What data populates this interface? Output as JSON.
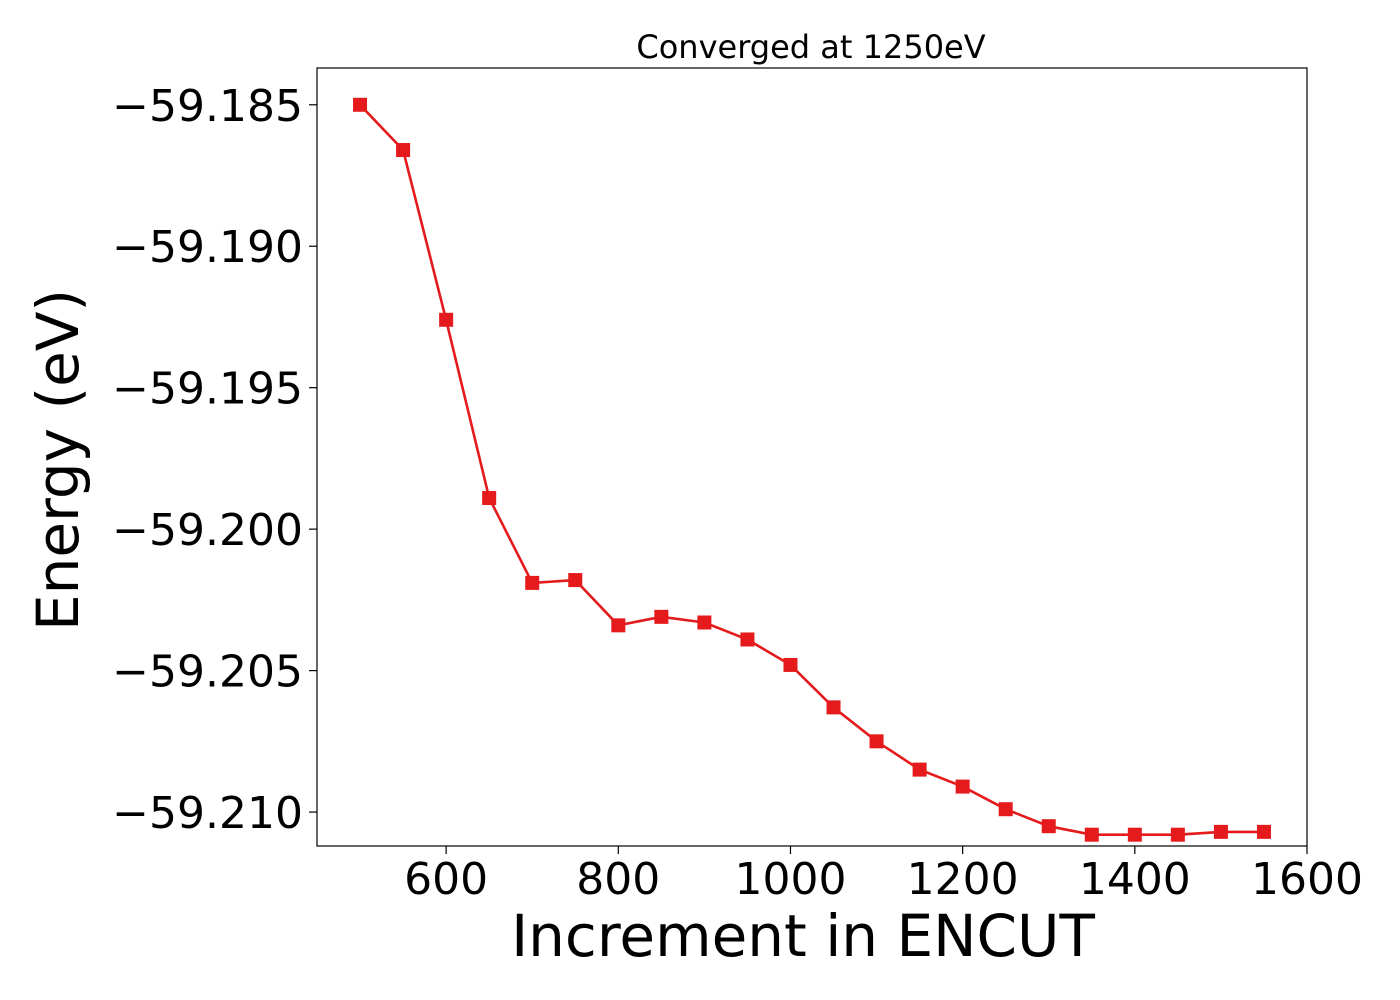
{
  "chart_data": {
    "type": "line",
    "title": "Converged at 1250eV",
    "xlabel": "Increment in ENCUT",
    "ylabel": "Energy (eV)",
    "xlim": [
      450,
      1600
    ],
    "ylim": [
      -59.2112,
      -59.1837
    ],
    "x_ticks": [
      600,
      800,
      1000,
      1200,
      1400,
      1600
    ],
    "x_tick_labels": [
      "600",
      "800",
      "1000",
      "1200",
      "1400",
      "1600"
    ],
    "y_ticks": [
      -59.185,
      -59.19,
      -59.195,
      -59.2,
      -59.205,
      -59.21
    ],
    "y_tick_labels": [
      "−59.185",
      "−59.190",
      "−59.195",
      "−59.200",
      "−59.205",
      "−59.210"
    ],
    "grid": false,
    "series": [
      {
        "color": "#e41a1c",
        "marker": "square",
        "x": [
          500,
          550,
          600,
          650,
          700,
          750,
          800,
          850,
          900,
          950,
          1000,
          1050,
          1100,
          1150,
          1200,
          1250,
          1300,
          1350,
          1400,
          1450,
          1500,
          1550
        ],
        "y": [
          -59.185,
          -59.1866,
          -59.1926,
          -59.1989,
          -59.2019,
          -59.2018,
          -59.2034,
          -59.2031,
          -59.2033,
          -59.2039,
          -59.2048,
          -59.2063,
          -59.2075,
          -59.2085,
          -59.2091,
          -59.2099,
          -59.2105,
          -59.2108,
          -59.2108,
          -59.2108,
          -59.2107,
          -59.2107
        ]
      }
    ]
  }
}
